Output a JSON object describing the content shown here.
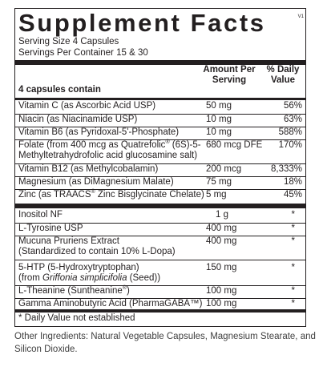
{
  "title": "Supplement Facts",
  "version": "V1",
  "serving_size": "Serving Size 4 Capsules",
  "servings_per_container": "Servings Per Container 15 & 30",
  "header": {
    "per_label": "4 capsules contain",
    "amount": "Amount Per Serving",
    "daily_value": "% Daily Value"
  },
  "nutrients": [
    {
      "name": "Vitamin C (as Ascorbic Acid USP)",
      "amount": "50 mg",
      "dv": "56%"
    },
    {
      "name": "Niacin (as Niacinamide USP)",
      "amount": "10 mg",
      "dv": "63%"
    },
    {
      "name": "Vitamin B6 (as Pyridoxal-5'-Phosphate)",
      "amount": "10 mg",
      "dv": "588%"
    },
    {
      "name_a": "Folate (from 400 mcg as Quatrefolic",
      "name_reg": "®",
      "name_b": " (6S)-5-Methyltetrahydrofolic acid glucosamine salt)",
      "amount": "680 mcg DFE",
      "dv": "170%"
    },
    {
      "name": "Vitamin B12 (as Methylcobalamin)",
      "amount": "200 mcg",
      "dv": "8,333%"
    },
    {
      "name": "Magnesium (as DiMagnesium Malate)",
      "amount": "75 mg",
      "dv": "18%"
    },
    {
      "name_a": "Zinc (as TRAACS",
      "name_reg": "®",
      "name_b": " Zinc Bisglycinate Chelate)",
      "amount": "5 mg",
      "dv": "45%"
    }
  ],
  "other_ingredients_rows": [
    {
      "name": "Inositol NF",
      "amount": "1 g",
      "dv": "*"
    },
    {
      "name": "L-Tyrosine USP",
      "amount": "400 mg",
      "dv": "*"
    },
    {
      "name_1": "Mucuna Pruriens Extract",
      "name_2": "(Standardized to contain 10% L-Dopa)",
      "amount": "400 mg",
      "dv": "*"
    },
    {
      "name_1": "5-HTP (5-Hydroxytryptophan)",
      "name_2a": "(from ",
      "name_2i": "Griffonia simplicifolia",
      "name_2b": " (Seed))",
      "amount": "150 mg",
      "dv": "*"
    },
    {
      "name_a": "L-Theanine (Suntheanine",
      "name_reg": "®",
      "name_b": ")",
      "amount": "100 mg",
      "dv": "*"
    },
    {
      "name": "Gamma Aminobutyric Acid (PharmaGABA™)",
      "amount": "100 mg",
      "dv": "*"
    }
  ],
  "footnote": "* Daily Value not established",
  "other_ingredients": "Other Ingredients: Natural Vegetable Capsules, Magnesium Stearate, and Silicon Dioxide."
}
